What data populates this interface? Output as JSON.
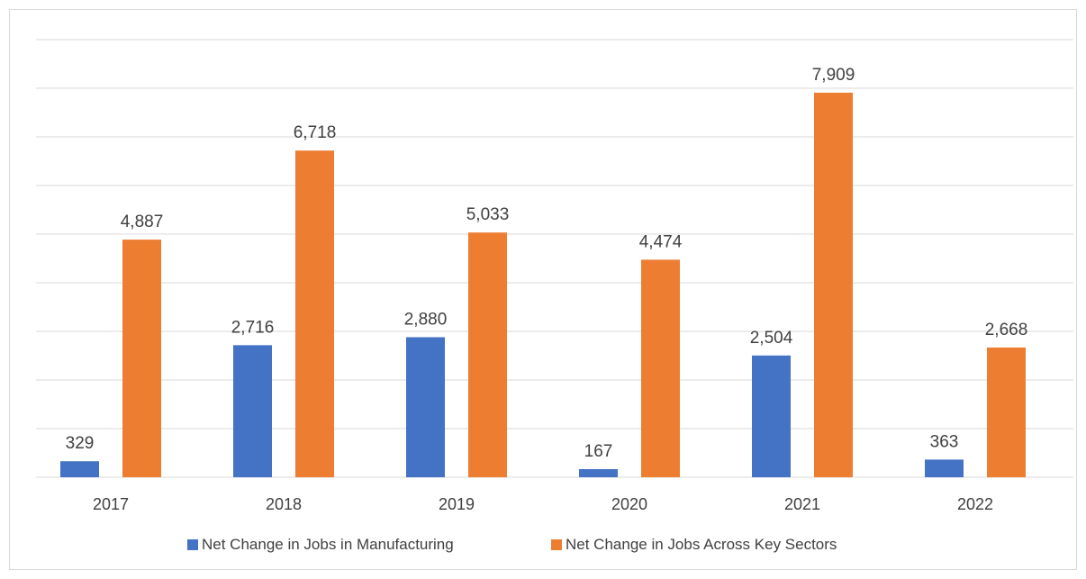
{
  "chart_data": {
    "type": "bar",
    "title": "",
    "xlabel": "",
    "ylabel": "",
    "categories": [
      "2017",
      "2018",
      "2019",
      "2020",
      "2021",
      "2022"
    ],
    "series": [
      {
        "name": "Net Change in Jobs in Manufacturing",
        "values": [
          329,
          2716,
          2880,
          167,
          2504,
          363
        ],
        "labels": [
          "329",
          "2,716",
          "2,880",
          "167",
          "2,504",
          "363"
        ],
        "color": "#4472C4"
      },
      {
        "name": "Net Change in Jobs Across Key Sectors",
        "values": [
          4887,
          6718,
          5033,
          4474,
          7909,
          2668
        ],
        "labels": [
          "4,887",
          "6,718",
          "5,033",
          "4,474",
          "7,909",
          "2,668"
        ],
        "color": "#ED7D31"
      }
    ],
    "ylim": [
      0,
      9000
    ],
    "y_gridline_step": 1000,
    "y_axis_labels_shown": false,
    "grid": true,
    "legend_position": "bottom",
    "gridline_color": "#d9d9d9",
    "text_color": "#404040"
  }
}
